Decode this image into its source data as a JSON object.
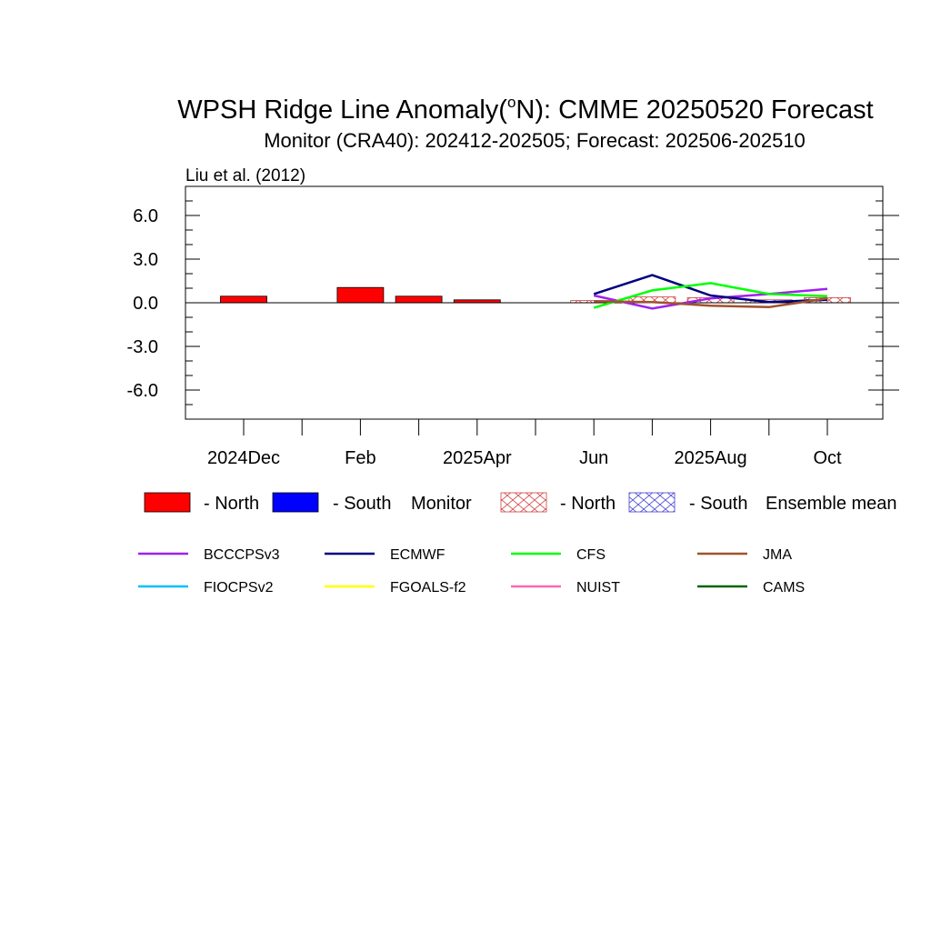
{
  "title": "WPSH Ridge Line Anomaly(",
  "title_super": "o",
  "title_rest": "N): CMME 20250520 Forecast",
  "subtitle": "Monitor (CRA40): 202412-202505; Forecast: 202506-202510",
  "credit": "Liu et al. (2012)",
  "colors": {
    "north": "#ff0000",
    "south": "#0000ff",
    "hatch_north": "#d04040",
    "hatch_south": "#4040d0"
  },
  "legend": {
    "north": "- North",
    "south": "- South",
    "monitor": "Monitor",
    "ens_north": "- North",
    "ens_south": "- South",
    "ensemble": "Ensemble mean"
  },
  "chart_data": {
    "type": "bar",
    "x_tick_labels": [
      "2024Dec",
      "Feb",
      "2025Apr",
      "Jun",
      "2025Aug",
      "Oct"
    ],
    "months": [
      "2024-12",
      "2025-01",
      "2025-02",
      "2025-03",
      "2025-04",
      "2025-05",
      "2025-06",
      "2025-07",
      "2025-08",
      "2025-09",
      "2025-10"
    ],
    "y_tick_labels": [
      "6.0",
      "3.0",
      "0.0",
      "-3.0",
      "-6.0"
    ],
    "ylim": [
      -8,
      8
    ],
    "monitor_north": [
      0.45,
      0.0,
      1.05,
      0.45,
      0.2
    ],
    "ensemble_north": [
      0.15,
      0.4,
      0.35,
      0.2,
      0.35
    ],
    "models": [
      {
        "name": "BCCCPSv3",
        "color": "#a020f0",
        "values": [
          0.5,
          -0.4,
          0.3,
          0.6,
          0.95
        ]
      },
      {
        "name": "ECMWF",
        "color": "#000080",
        "values": [
          0.6,
          1.9,
          0.5,
          0.05,
          0.2
        ]
      },
      {
        "name": "CFS",
        "color": "#00ff00",
        "values": [
          -0.35,
          0.85,
          1.35,
          0.6,
          0.45
        ]
      },
      {
        "name": "JMA",
        "color": "#a0522d",
        "values": [
          0.1,
          0.05,
          -0.2,
          -0.3,
          0.3
        ]
      },
      {
        "name": "FIOCPSv2",
        "color": "#00bfff",
        "values": []
      },
      {
        "name": "FGOALS-f2",
        "color": "#ffff00",
        "values": []
      },
      {
        "name": "NUIST",
        "color": "#ff69b4",
        "values": []
      },
      {
        "name": "CAMS",
        "color": "#006400",
        "values": []
      }
    ]
  }
}
